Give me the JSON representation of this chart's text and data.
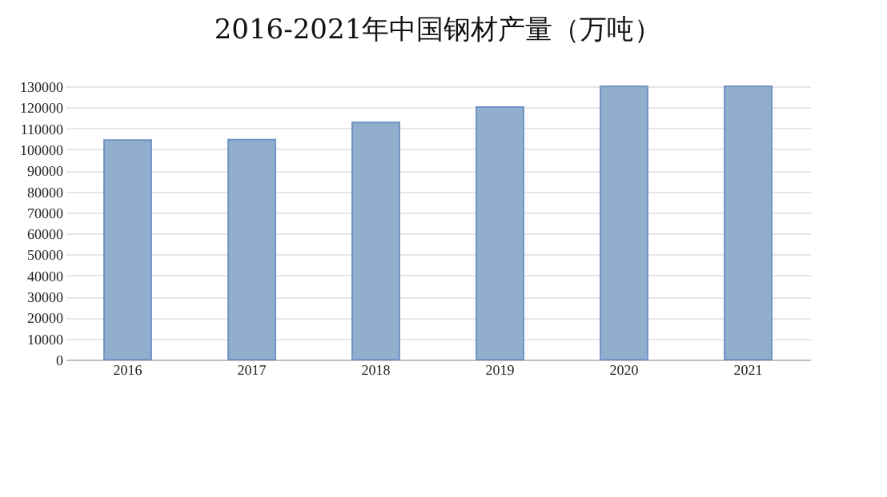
{
  "chart_data": {
    "type": "bar",
    "title": "2016-2021年中国钢材产量（万吨）",
    "categories": [
      "2016",
      "2017",
      "2018",
      "2019",
      "2020",
      "2021"
    ],
    "values": [
      104400,
      104600,
      112800,
      120100,
      130000,
      130000
    ],
    "color": "#92aece",
    "ylim": [
      0,
      130000
    ],
    "yticks": [
      0,
      10000,
      20000,
      30000,
      40000,
      50000,
      60000,
      70000,
      80000,
      90000,
      100000,
      110000,
      120000,
      130000
    ],
    "grid": "y"
  }
}
